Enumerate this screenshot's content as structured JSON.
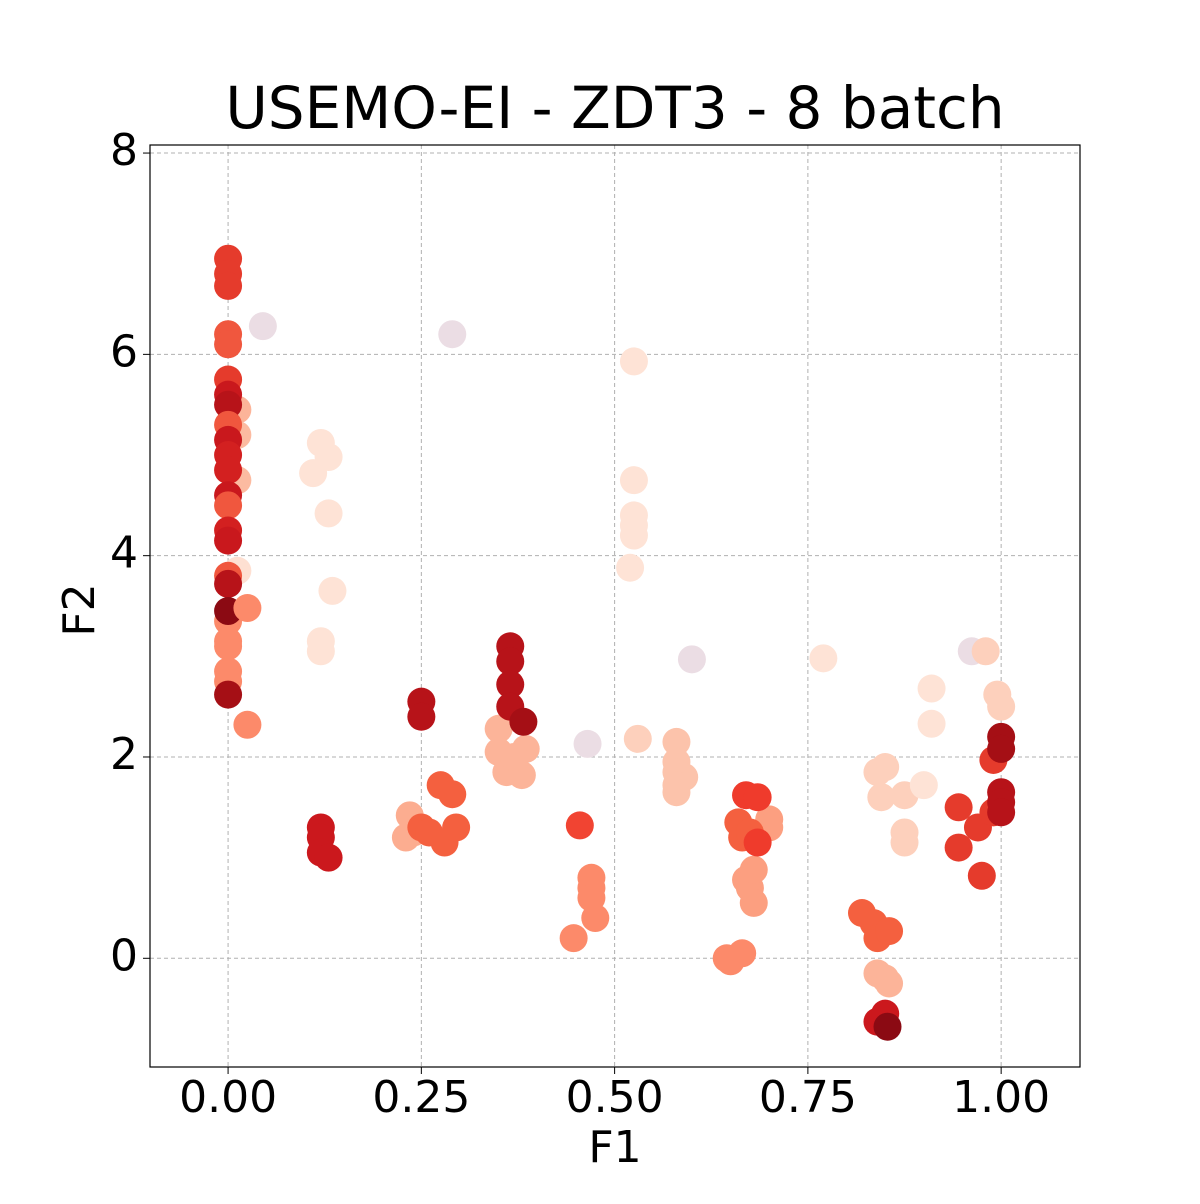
{
  "chart_data": {
    "type": "scatter",
    "title": "USEMO-EI - ZDT3 - 8 batch",
    "xlabel": "F1",
    "ylabel": "F2",
    "x": [
      0,
      0,
      0,
      0,
      0,
      0,
      0.012,
      0.012,
      0.012,
      0.012,
      0,
      0,
      0,
      0,
      0,
      0,
      0,
      0,
      0,
      0,
      0,
      0,
      0,
      0,
      0,
      0,
      0,
      0,
      0,
      0.025,
      0.025,
      0.045,
      0.12,
      0.11,
      0.13,
      0.13,
      0.135,
      0.12,
      0.12,
      0.12,
      0.12,
      0.12,
      0.13,
      0.29,
      0.235,
      0.23,
      0.24,
      0.25,
      0.26,
      0.275,
      0.29,
      0.28,
      0.295,
      0.25,
      0.25,
      0.35,
      0.35,
      0.36,
      0.38,
      0.385,
      0.37,
      0.365,
      0.365,
      0.365,
      0.365,
      0.382,
      0.465,
      0.455,
      0.447,
      0.47,
      0.47,
      0.47,
      0.475,
      0.525,
      0.525,
      0.525,
      0.525,
      0.525,
      0.52,
      0.53,
      0.58,
      0.58,
      0.58,
      0.59,
      0.58,
      0.58,
      0.6,
      0.645,
      0.65,
      0.665,
      0.7,
      0.7,
      0.67,
      0.675,
      0.68,
      0.68,
      0.66,
      0.665,
      0.675,
      0.67,
      0.685,
      0.685,
      0.77,
      0.82,
      0.835,
      0.84,
      0.855,
      0.84,
      0.85,
      0.855,
      0.84,
      0.85,
      0.853,
      0.85,
      0.84,
      0.845,
      0.875,
      0.875,
      0.875,
      0.91,
      0.91,
      0.9,
      0.962,
      0.98,
      0.995,
      1.0,
      0.945,
      0.945,
      0.97,
      0.975,
      0.99,
      0.99,
      1.0,
      1.0,
      1.0,
      1.0,
      1.0
    ],
    "values": [
      6.95,
      6.8,
      6.68,
      6.2,
      6.1,
      5.75,
      5.45,
      5.2,
      4.75,
      3.85,
      5.6,
      5.5,
      5.3,
      5.15,
      5.0,
      4.85,
      4.6,
      4.5,
      4.25,
      4.15,
      3.8,
      3.72,
      3.35,
      3.15,
      3.1,
      2.85,
      2.75,
      3.45,
      2.62,
      3.48,
      2.32,
      6.28,
      5.12,
      4.82,
      4.98,
      4.42,
      3.65,
      3.15,
      3.05,
      1.3,
      1.2,
      1.05,
      1.0,
      6.2,
      1.42,
      1.2,
      1.25,
      1.3,
      1.25,
      1.72,
      1.63,
      1.15,
      1.3,
      2.55,
      2.4,
      2.28,
      2.05,
      1.85,
      1.82,
      2.08,
      2.0,
      3.1,
      2.95,
      2.72,
      2.5,
      2.35,
      2.13,
      1.32,
      0.2,
      0.8,
      0.7,
      0.6,
      0.4,
      5.93,
      4.75,
      4.4,
      4.3,
      4.2,
      3.88,
      2.18,
      2.15,
      1.95,
      1.85,
      1.8,
      1.65,
      1.72,
      2.97,
      0.0,
      -0.03,
      0.05,
      1.38,
      1.3,
      0.78,
      0.7,
      0.88,
      0.55,
      1.35,
      1.2,
      1.25,
      1.62,
      1.6,
      1.15,
      2.98,
      0.45,
      0.35,
      0.2,
      0.27,
      -0.15,
      -0.2,
      -0.25,
      -0.63,
      -0.55,
      -0.68,
      1.9,
      1.85,
      1.6,
      1.62,
      1.25,
      1.15,
      2.68,
      2.33,
      1.72,
      3.05,
      3.05,
      2.62,
      2.5,
      1.5,
      1.1,
      1.3,
      0.82,
      1.97,
      1.45,
      2.2,
      2.08,
      1.65,
      1.55,
      1.45
    ],
    "colors": [
      "#e53b2c",
      "#e53b2c",
      "#e53b2c",
      "#f0573e",
      "#f0573e",
      "#e53b2c",
      "#fcb499",
      "#fcbba1",
      "#fcbba1",
      "#fee0d2",
      "#c9181d",
      "#b71319",
      "#f0573e",
      "#c9181d",
      "#d32020",
      "#d32020",
      "#c9181d",
      "#f0573e",
      "#d32020",
      "#c9181d",
      "#f0573e",
      "#b71319",
      "#fc8a6a",
      "#fc8a6a",
      "#fc8a6a",
      "#fc8a6a",
      "#fc8a6a",
      "#8b0a13",
      "#a50f15",
      "#fc8a6a",
      "#fc8a6a",
      "#ebdde4",
      "#fee3d6",
      "#fee3d6",
      "#fee3d6",
      "#fee3d6",
      "#fee3d6",
      "#fee3d6",
      "#fee3d6",
      "#cb181d",
      "#cb181d",
      "#cb181d",
      "#cb181d",
      "#ebdde4",
      "#fcad90",
      "#fcad90",
      "#fcad90",
      "#f4603f",
      "#f4603f",
      "#f4603f",
      "#f4603f",
      "#f4603f",
      "#f4603f",
      "#b71319",
      "#b71319",
      "#fcb499",
      "#fcb499",
      "#fcb499",
      "#fcb499",
      "#fcb499",
      "#fcb499",
      "#b71319",
      "#b71319",
      "#b71319",
      "#b71319",
      "#a50f15",
      "#ebdde4",
      "#f14432",
      "#fc8a6a",
      "#fc8a6a",
      "#fc8a6a",
      "#fc8a6a",
      "#fc8a6a",
      "#fee3d6",
      "#fee3d6",
      "#fee3d6",
      "#fee3d6",
      "#fee3d6",
      "#fee3d6",
      "#fdd0bc",
      "#fcc3ab",
      "#fcc3ab",
      "#fcc3ab",
      "#fcc3ab",
      "#fcc3ab",
      "#fcc3ab",
      "#ebdde4",
      "#fc8a6a",
      "#fc8a6a",
      "#fc8a6a",
      "#fc9f80",
      "#fc9f80",
      "#fc9f80",
      "#fc9f80",
      "#fc9f80",
      "#fc9f80",
      "#f4603f",
      "#f4603f",
      "#f4603f",
      "#ef3b2c",
      "#ef3b2c",
      "#ef3b2c",
      "#fee3d6",
      "#f4603f",
      "#f4603f",
      "#f4603f",
      "#f4603f",
      "#fcb499",
      "#fcb499",
      "#fcb499",
      "#cb181d",
      "#cb181d",
      "#8b0a13",
      "#fdd0bc",
      "#fdd0bc",
      "#fdd0bc",
      "#fdd0bc",
      "#fdd0bc",
      "#fdd0bc",
      "#fee3d6",
      "#fee3d6",
      "#fee3d6",
      "#ebdde4",
      "#fdd0bc",
      "#fdd0bc",
      "#fdd0bc",
      "#e53b2c",
      "#e53b2c",
      "#e53b2c",
      "#e53b2c",
      "#e53b2c",
      "#e53b2c",
      "#a50f15",
      "#a50f15",
      "#b71319",
      "#b71319",
      "#b71319"
    ],
    "xlim": [
      -0.101,
      1.102
    ],
    "ylim": [
      -1.08,
      8.08
    ],
    "xticks": [
      {
        "value": 0,
        "label": "0.00"
      },
      {
        "value": 0.25,
        "label": "0.25"
      },
      {
        "value": 0.5,
        "label": "0.50"
      },
      {
        "value": 0.75,
        "label": "0.75"
      },
      {
        "value": 1,
        "label": "1.00"
      }
    ],
    "yticks": [
      0,
      2,
      4,
      6,
      8
    ],
    "grid": true
  }
}
